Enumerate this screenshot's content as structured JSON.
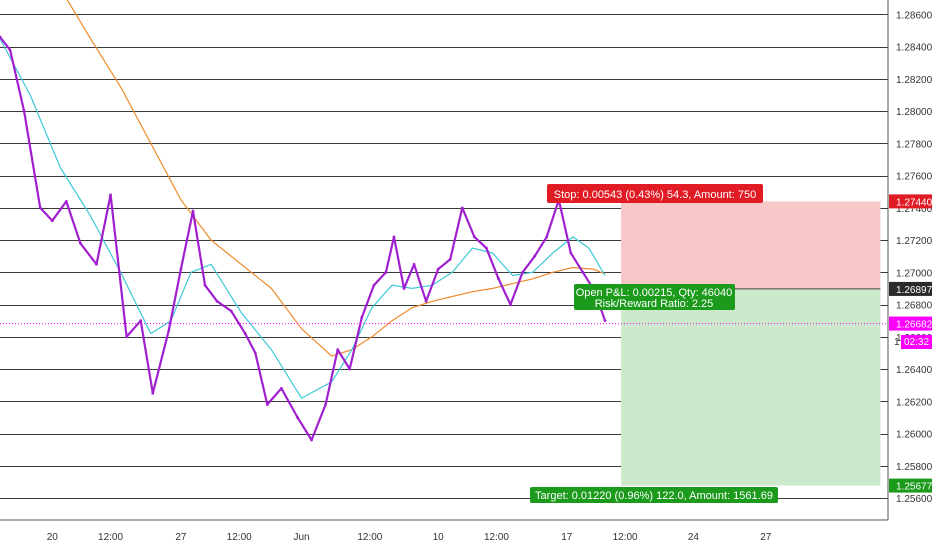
{
  "colors": {
    "background": "#ffffff",
    "grid": "#3a3a3a",
    "candle": "#a020d0",
    "ma_fast": "#3cc8d8",
    "ma_slow": "#f08a2a",
    "stop_zone": "#f8c8c8",
    "target_zone": "#cde9cb",
    "stop_label": "#e01b24",
    "target_label": "#1b9a1b",
    "current_price": "#ff00ff",
    "entry_price": "#2b2b2b",
    "axis_text": "#333333"
  },
  "chart_data": {
    "type": "line",
    "title": "",
    "instrument_note": "candlestick price chart with two moving averages and a long-position tool",
    "x_axis": {
      "tick_labels": [
        "20",
        "12:00",
        "27",
        "12:00",
        "Jun",
        "12:00",
        "10",
        "12:00",
        "17",
        "12:00",
        "24",
        "27"
      ],
      "xlim_days": [
        0,
        38.7
      ]
    },
    "y_axis": {
      "ylim": [
        1.255,
        1.287
      ],
      "tick_values": [
        1.256,
        1.258,
        1.26,
        1.262,
        1.264,
        1.266,
        1.268,
        1.27,
        1.272,
        1.274,
        1.276,
        1.278,
        1.28,
        1.282,
        1.284,
        1.286
      ],
      "tick_labels": [
        "1.25600",
        "1.25800",
        "1.26000",
        "1.26200",
        "1.26400",
        "1.26600",
        "1.26800",
        "1.27000",
        "1.27200",
        "1.27400",
        "1.27600",
        "1.27800",
        "1.28000",
        "1.28200",
        "1.28400",
        "1.28600"
      ],
      "grid": true,
      "side": "right"
    },
    "series": [
      {
        "kind": "price",
        "x": [
          0.0,
          0.5,
          1.2,
          2.0,
          2.6,
          3.3,
          4.0,
          4.8,
          5.5,
          6.3,
          7.0,
          7.6,
          8.4,
          9.0,
          9.6,
          10.2,
          10.8,
          11.5,
          12.2,
          12.7,
          13.3,
          14.0,
          14.8,
          15.5,
          16.2,
          16.8,
          17.4,
          18.0,
          18.6,
          19.2,
          19.6,
          20.1,
          20.6,
          21.2,
          21.8,
          22.4,
          23.0,
          23.6,
          24.2,
          24.8,
          25.4,
          26.0,
          26.6,
          27.2,
          27.8,
          28.4,
          29.0,
          29.6,
          30.1
        ],
        "values": [
          1.2846,
          1.2838,
          1.28,
          1.274,
          1.2732,
          1.2744,
          1.2718,
          1.2705,
          1.2748,
          1.266,
          1.267,
          1.2625,
          1.2664,
          1.2702,
          1.2738,
          1.2692,
          1.2682,
          1.2676,
          1.2662,
          1.265,
          1.2618,
          1.2628,
          1.261,
          1.2596,
          1.2618,
          1.2652,
          1.264,
          1.2672,
          1.2692,
          1.27,
          1.2722,
          1.269,
          1.2705,
          1.2682,
          1.2702,
          1.2708,
          1.274,
          1.2722,
          1.2715,
          1.2696,
          1.268,
          1.27,
          1.271,
          1.2722,
          1.2745,
          1.2712,
          1.27,
          1.2688,
          1.267
        ]
      },
      {
        "kind": "moving-average-fast",
        "x": [
          0.0,
          1.5,
          3.0,
          4.5,
          6.0,
          7.5,
          8.5,
          9.5,
          10.5,
          12.0,
          13.5,
          15.0,
          16.5,
          17.5,
          18.5,
          19.5,
          20.5,
          21.5,
          22.5,
          23.5,
          24.5,
          25.5,
          26.5,
          27.5,
          28.5,
          29.3,
          30.1
        ],
        "values": [
          1.2845,
          1.281,
          1.2765,
          1.2735,
          1.27,
          1.2662,
          1.267,
          1.27,
          1.2705,
          1.2675,
          1.2652,
          1.2622,
          1.2632,
          1.2652,
          1.2678,
          1.2692,
          1.269,
          1.2692,
          1.27,
          1.2715,
          1.2712,
          1.2698,
          1.27,
          1.2712,
          1.2722,
          1.2715,
          1.2698
        ]
      },
      {
        "kind": "moving-average-slow",
        "x": [
          3.3,
          4.5,
          6.0,
          7.5,
          9.0,
          10.5,
          12.0,
          13.5,
          15.0,
          16.5,
          17.5,
          18.5,
          19.5,
          20.5,
          21.5,
          22.5,
          23.5,
          24.5,
          25.5,
          26.5,
          27.5,
          28.5,
          29.5,
          30.1
        ],
        "values": [
          1.287,
          1.2845,
          1.2815,
          1.278,
          1.2745,
          1.272,
          1.2705,
          1.269,
          1.2665,
          1.2648,
          1.2652,
          1.266,
          1.267,
          1.2678,
          1.2682,
          1.2685,
          1.2688,
          1.269,
          1.2693,
          1.2696,
          1.27,
          1.2703,
          1.2702,
          1.2699
        ]
      }
    ],
    "position": {
      "type": "long",
      "x_start": 30.9,
      "x_end": 43.8,
      "entry": 1.26897,
      "stop": 1.2744,
      "target": 1.25677,
      "stop_label": "Stop: 0.00543 (0.43%) 54.3, Amount: 750",
      "open_label_line1": "Open P&L: 0.00215, Qty: 46040",
      "open_label_line2": "Risk/Reward Ratio: 2.25",
      "target_label": "Target: 0.01220 (0.96%) 122.0, Amount: 1561.69"
    },
    "price_markers": [
      {
        "name": "stop-price-marker",
        "value": 1.2744,
        "label": "1.27440",
        "color": "#e01b24"
      },
      {
        "name": "entry-price-marker",
        "value": 1.26897,
        "label": "1.26897",
        "color": "#2b2b2b"
      },
      {
        "name": "current-price-marker",
        "value": 1.26682,
        "label": "1.26682",
        "color": "#ff00ff"
      },
      {
        "name": "target-price-marker",
        "value": 1.25677,
        "label": "1.25677",
        "color": "#1b9a1b"
      }
    ],
    "countdown": {
      "label": "02:32",
      "prefix": "1"
    }
  }
}
